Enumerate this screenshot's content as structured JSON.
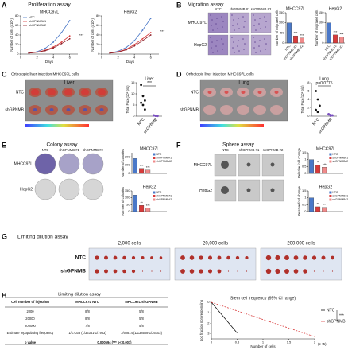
{
  "figure": {
    "letters": [
      "A",
      "B",
      "C",
      "D",
      "E",
      "F",
      "G",
      "H"
    ],
    "proliferation_title": "Proliferation assay",
    "migration": {
      "title": "Migration assay",
      "columns": [
        "NTC",
        "shGPNMB #1",
        "shGPNMB #2"
      ],
      "rows": [
        "MHCC97L",
        "HepG2"
      ]
    },
    "liver": {
      "title": "Orthotopic liver injection MHCC97L cells",
      "organ": "Liver",
      "rows": [
        "NTC",
        "shGPNMB"
      ]
    },
    "lung": {
      "title": "Orthotopic liver injection MHCC97L cells",
      "organ": "Lung",
      "rows": [
        "NTC",
        "shGPNMB"
      ]
    },
    "colony": {
      "title": "Colony assay",
      "columns": [
        "NTC",
        "shGPNMB #1",
        "shGPNMB #2"
      ],
      "rows": [
        "MHCC97L",
        "HepG2"
      ]
    },
    "sphere": {
      "title": "Sphere assay",
      "columns": [
        "NTC",
        "shGPNMB #1",
        "shGPNMB #2"
      ],
      "rows": [
        "MHCC97L",
        "HepG2"
      ]
    },
    "dilution": {
      "title": "Limiting dilution assay",
      "columns": [
        "2,000 cells",
        "20,000 cells",
        "200,000 cells"
      ],
      "rows": [
        "NTC",
        "shGPNMB"
      ]
    },
    "table": {
      "title": "Limiting dilution assay",
      "header": [
        "Cell number of injection",
        "MHCC97L NTC",
        "MHCC97L shGPNMB"
      ],
      "rows": [
        [
          "2000",
          "8/8",
          "5/8"
        ],
        [
          "20000",
          "8/8",
          "5/8"
        ],
        [
          "200000",
          "7/8",
          "5/8"
        ],
        [
          "Estimate repopulating frequency",
          "1/17033 (1/36361-1/7983)",
          "1/60814 (1/138508-1/26703)"
        ],
        [
          "p value",
          "0.000594 (*** p< 0.001)"
        ]
      ]
    }
  },
  "chart_data": [
    {
      "type": "line",
      "title": "MHCC97L",
      "x_label": "Days",
      "y_label": "Number of cells (x10⁴)",
      "x": [
        1,
        2,
        3,
        4,
        5,
        6
      ],
      "xlim": [
        0,
        7
      ],
      "xticks": [
        0,
        2,
        4,
        6
      ],
      "ylim": [
        0,
        80
      ],
      "yticks": [
        0,
        20,
        40,
        60,
        80
      ],
      "legend": "top-left",
      "annotation": "***",
      "series": [
        {
          "name": "NTC",
          "color": "#4a78c8",
          "values": [
            2,
            5,
            12,
            25,
            45,
            70
          ]
        },
        {
          "name": "shGPNMB#1",
          "color": "#d83a3a",
          "values": [
            2,
            4,
            8,
            15,
            25,
            38
          ]
        },
        {
          "name": "shGPNMB#2",
          "color": "#8e1f28",
          "values": [
            2,
            4,
            7,
            13,
            22,
            32
          ]
        }
      ]
    },
    {
      "type": "line",
      "title": "HepG2",
      "x_label": "Days",
      "y_label": "Number of cells (x10⁴)",
      "x": [
        1,
        2,
        3,
        4,
        5,
        6
      ],
      "xlim": [
        0,
        7
      ],
      "xticks": [
        0,
        2,
        4,
        6
      ],
      "ylim": [
        0,
        80
      ],
      "yticks": [
        0,
        20,
        40,
        60,
        80
      ],
      "annotation": "***",
      "series": [
        {
          "name": "NTC",
          "color": "#4a78c8",
          "values": [
            2,
            6,
            14,
            28,
            50,
            75
          ]
        },
        {
          "name": "shGPNMB#1",
          "color": "#d83a3a",
          "values": [
            2,
            5,
            10,
            20,
            32,
            45
          ]
        },
        {
          "name": "shGPNMB#2",
          "color": "#8e1f28",
          "values": [
            2,
            4,
            9,
            17,
            28,
            40
          ]
        }
      ]
    },
    {
      "type": "bar",
      "title": "MHCC97L",
      "y_label": "Number of migrated cells",
      "category_labels": "axis",
      "categories": [
        "NTC",
        "shGPNMB #1",
        "shGPNMB #2"
      ],
      "values": [
        100,
        35,
        25
      ],
      "colors": [
        "#4a78c8",
        "#d83a3a",
        "#f08a8a"
      ],
      "annotations": [
        null,
        "***",
        "***"
      ],
      "ylim": [
        0,
        150
      ],
      "yticks": [
        0,
        50,
        100,
        150
      ]
    },
    {
      "type": "bar",
      "title": "HepG2",
      "y_label": "Number of migrated cells",
      "category_labels": "axis",
      "categories": [
        "NTC",
        "shGPNMB #1",
        "shGPNMB #2"
      ],
      "values": [
        100,
        40,
        30
      ],
      "colors": [
        "#4a78c8",
        "#d83a3a",
        "#f08a8a"
      ],
      "annotations": [
        null,
        "***",
        "***"
      ],
      "ylim": [
        0,
        150
      ],
      "yticks": [
        0,
        50,
        100,
        150
      ]
    },
    {
      "type": "strip",
      "title": "Liver",
      "y_label": "Total Flux (10⁹ p/s)",
      "categories": [
        "NTC",
        "shGPNMB"
      ],
      "values": [
        [
          14,
          9,
          7,
          6,
          5,
          3
        ],
        [
          0.3,
          0.2,
          0.1,
          0.4,
          0.2
        ]
      ],
      "colors": [
        "#111111",
        "#7a4fc0"
      ],
      "annotation": "***",
      "ylim": [
        0,
        15
      ],
      "yticks": [
        0,
        5,
        10,
        15
      ]
    },
    {
      "type": "strip",
      "title": "Lung",
      "y_label": "Total Flux (10⁹ p/s)",
      "categories": [
        "NTC",
        "shGPNMB"
      ],
      "values": [
        [
          6,
          4,
          2.5,
          1.5,
          1
        ],
        [
          0.5,
          0.3,
          0.2,
          0.4,
          0.1
        ]
      ],
      "colors": [
        "#111111",
        "#7a4fc0"
      ],
      "annotation": "p=0.0775",
      "ylim": [
        0,
        8
      ],
      "yticks": [
        0,
        2,
        4,
        6,
        8
      ]
    },
    {
      "type": "bar",
      "title": "MHCC97L",
      "y_label": "Number of colonies",
      "category_labels": "legend",
      "categories": [
        "NTC",
        "shGPNMB#1",
        "shGPNMB#2"
      ],
      "values": [
        180,
        60,
        40
      ],
      "colors": [
        "#4a78c8",
        "#d83a3a",
        "#f08a8a"
      ],
      "annotations": [
        null,
        "***",
        "***"
      ],
      "ylim": [
        0,
        250
      ],
      "yticks": [
        0,
        100,
        200
      ]
    },
    {
      "type": "bar",
      "title": "HepG2",
      "y_label": "Number of colonies",
      "category_labels": "legend",
      "categories": [
        "NTC",
        "shGPNMB#1",
        "shGPNMB#2"
      ],
      "values": [
        120,
        45,
        25
      ],
      "colors": [
        "#4a78c8",
        "#d83a3a",
        "#f08a8a"
      ],
      "annotations": [
        null,
        "**",
        "***"
      ],
      "ylim": [
        0,
        150
      ],
      "yticks": [
        0,
        50,
        100,
        150
      ]
    },
    {
      "type": "bar",
      "title": "MHCC97L",
      "y_label": "Relative fold change",
      "category_labels": "legend",
      "categories": [
        "NTC",
        "shGPNMB#1",
        "shGPNMB#2"
      ],
      "values": [
        1,
        0.6,
        0.45
      ],
      "colors": [
        "#4a78c8",
        "#d83a3a",
        "#f08a8a"
      ],
      "annotations": [
        null,
        "*",
        "***"
      ],
      "ylim": [
        0,
        1.5
      ],
      "yticks": [
        0,
        0.5,
        1,
        1.5
      ]
    },
    {
      "type": "bar",
      "title": "HepG2",
      "y_label": "Relative fold change",
      "category_labels": "legend",
      "categories": [
        "NTC",
        "shGPNMB#1",
        "shGPNMB#2"
      ],
      "values": [
        1,
        0.35,
        0.3
      ],
      "colors": [
        "#4a78c8",
        "#d83a3a",
        "#f08a8a"
      ],
      "annotations": [
        null,
        "**",
        "**"
      ],
      "ylim": [
        0,
        1.5
      ],
      "yticks": [
        0,
        0.5,
        1,
        1.5
      ]
    },
    {
      "type": "line",
      "title": "Stem cell frequency (95% CI range)",
      "x_label": "Number of cells",
      "x_unit": "(e+5)",
      "y_label": "Log fraction non-responding",
      "xlim": [
        0,
        2
      ],
      "xticks": [
        0,
        0.5,
        1,
        1.5,
        2
      ],
      "ylim": [
        -3.5,
        0
      ],
      "yticks": [
        0,
        -1,
        -2,
        -3
      ],
      "legend": "right",
      "annotation": "***",
      "series": [
        {
          "name": "NTC",
          "color": "#111111",
          "x": [
            0,
            0.5
          ],
          "values": [
            0,
            -2.94
          ]
        },
        {
          "name": "shGPNMB",
          "color": "#d83a3a",
          "dashed": true,
          "x": [
            0,
            2
          ],
          "values": [
            0,
            -3.29
          ]
        }
      ]
    }
  ]
}
